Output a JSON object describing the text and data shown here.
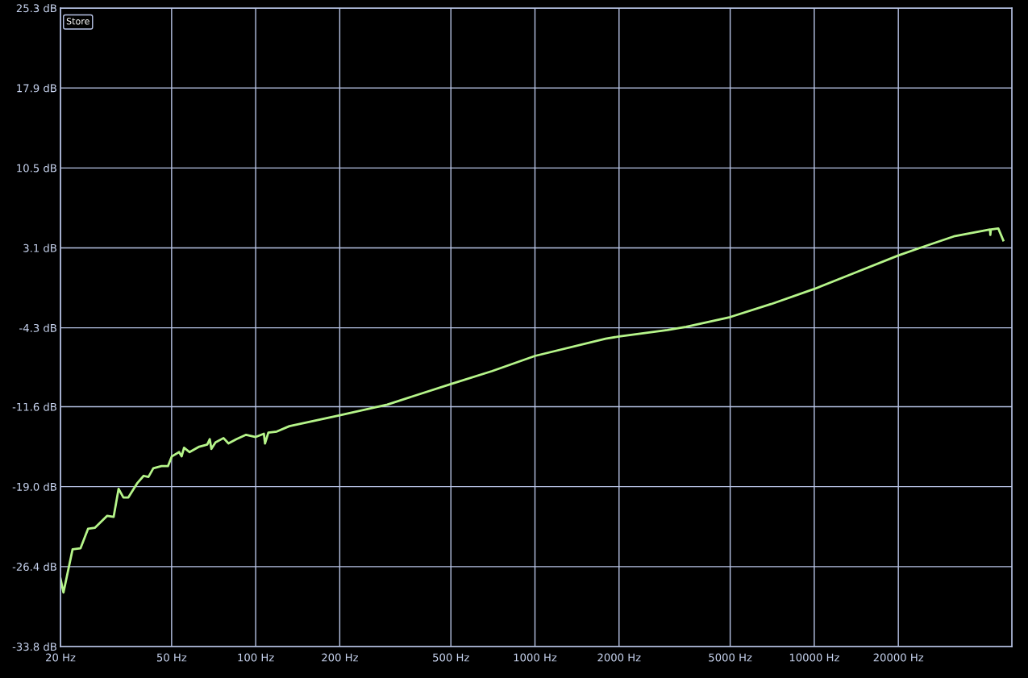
{
  "chart_data": {
    "type": "line",
    "x": [
      20,
      20.5,
      22.1,
      23.6,
      25.1,
      26.6,
      29.4,
      31.0,
      32.3,
      33.6,
      35.0,
      37.6,
      39.7,
      41.3,
      43.0,
      46.0,
      48.5,
      50.1,
      53.2,
      54.3,
      55.4,
      58.0,
      62.8,
      67.1,
      68.5,
      69.4,
      71.8,
      76.7,
      79.9,
      85.3,
      92.4,
      100,
      107,
      108,
      111,
      119,
      132,
      200,
      296,
      500,
      703,
      1000,
      1790,
      2000,
      2980,
      3480,
      5000,
      7000,
      10000,
      14000,
      20000,
      23900,
      31900,
      42600,
      42700,
      42900,
      45600,
      47500
    ],
    "series": [
      {
        "color": "#b6f58a",
        "values": [
          -27.5,
          -28.8,
          -24.8,
          -24.7,
          -22.9,
          -22.8,
          -21.7,
          -21.8,
          -19.2,
          -20.0,
          -20.0,
          -18.7,
          -18.0,
          -18.1,
          -17.3,
          -17.1,
          -17.1,
          -16.2,
          -15.8,
          -16.2,
          -15.4,
          -15.8,
          -15.3,
          -15.1,
          -14.6,
          -15.5,
          -14.9,
          -14.5,
          -15.0,
          -14.6,
          -14.2,
          -14.4,
          -14.1,
          -15.0,
          -14.0,
          -13.9,
          -13.4,
          -12.4,
          -11.4,
          -9.5,
          -8.3,
          -6.9,
          -5.3,
          -5.1,
          -4.5,
          -4.2,
          -3.3,
          -2.1,
          -0.7,
          0.8,
          2.4,
          3.1,
          4.2,
          4.8,
          4.3,
          4.8,
          4.9,
          3.8
        ]
      }
    ],
    "log": "x",
    "xlim": [
      20,
      51000
    ],
    "xticks": [
      {
        "value": 20,
        "label": "20 Hz"
      },
      {
        "value": 50,
        "label": "50 Hz"
      },
      {
        "value": 100,
        "label": "100 Hz"
      },
      {
        "value": 200,
        "label": "200 Hz"
      },
      {
        "value": 500,
        "label": "500 Hz"
      },
      {
        "value": 1000,
        "label": "1000 Hz"
      },
      {
        "value": 2000,
        "label": "2000 Hz"
      },
      {
        "value": 5000,
        "label": "5000 Hz"
      },
      {
        "value": 10000,
        "label": "10000 Hz"
      },
      {
        "value": 20000,
        "label": "20000 Hz"
      }
    ],
    "ylim": [
      -33.8,
      25.3
    ],
    "yticks": [
      {
        "value": -33.8,
        "label": "-33.8 dB"
      },
      {
        "value": -26.4,
        "label": "-26.4 dB"
      },
      {
        "value": -19.0,
        "label": "-19.0 dB"
      },
      {
        "value": -11.6,
        "label": "-11.6 dB"
      },
      {
        "value": -4.3,
        "label": "-4.3 dB"
      },
      {
        "value": 3.1,
        "label": "3.1 dB"
      },
      {
        "value": 10.5,
        "label": "10.5 dB"
      },
      {
        "value": 17.9,
        "label": "17.9 dB"
      },
      {
        "value": 25.3,
        "label": "25.3 dB"
      }
    ],
    "grid": true,
    "marker": "none",
    "line_style": "solid",
    "annotations": [
      "Store"
    ]
  }
}
